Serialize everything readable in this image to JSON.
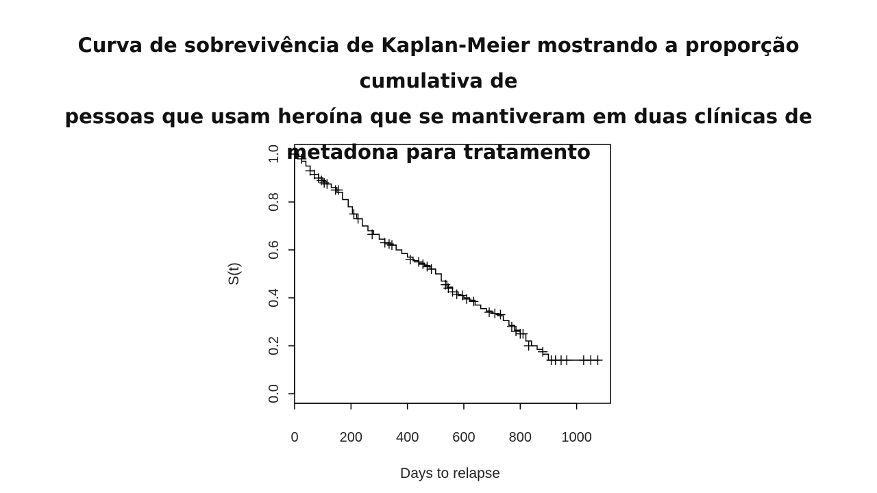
{
  "title_lines": [
    "Curva de sobrevivência de Kaplan-Meier mostrando a proporção cumulativa de",
    "pessoas que usam heroína que se mantiveram em duas clínicas de",
    "metadona para tratamento"
  ],
  "chart_data": {
    "type": "line",
    "xlabel": "Days to relapse",
    "ylabel": "S(t)",
    "xlim": [
      0,
      1120
    ],
    "ylim": [
      -0.04,
      1.04
    ],
    "x_ticks": [
      0,
      200,
      400,
      600,
      800,
      1000
    ],
    "x_tick_labels": [
      "0",
      "200",
      "400",
      "600",
      "800",
      "1000"
    ],
    "y_ticks": [
      0.0,
      0.2,
      0.4,
      0.6,
      0.8,
      1.0
    ],
    "y_tick_labels": [
      "0.0",
      "0.2",
      "0.4",
      "0.6",
      "0.8",
      "1.0"
    ],
    "grid": false,
    "series": [
      {
        "style": "step",
        "color": "#000000",
        "x": [
          0,
          15,
          25,
          40,
          55,
          70,
          85,
          100,
          115,
          130,
          150,
          170,
          190,
          205,
          220,
          240,
          260,
          280,
          300,
          320,
          340,
          360,
          380,
          400,
          420,
          440,
          460,
          480,
          500,
          520,
          540,
          560,
          580,
          600,
          620,
          640,
          660,
          680,
          700,
          720,
          740,
          760,
          780,
          800,
          820,
          840,
          860,
          880,
          900,
          910,
          1080
        ],
        "y": [
          1.0,
          0.99,
          0.97,
          0.95,
          0.93,
          0.915,
          0.9,
          0.885,
          0.875,
          0.86,
          0.84,
          0.81,
          0.78,
          0.75,
          0.73,
          0.7,
          0.68,
          0.665,
          0.645,
          0.63,
          0.62,
          0.6,
          0.585,
          0.57,
          0.555,
          0.545,
          0.535,
          0.52,
          0.5,
          0.47,
          0.445,
          0.425,
          0.41,
          0.4,
          0.39,
          0.37,
          0.355,
          0.345,
          0.335,
          0.325,
          0.305,
          0.285,
          0.265,
          0.25,
          0.22,
          0.2,
          0.185,
          0.165,
          0.14,
          0.14,
          0.14
        ]
      }
    ],
    "censored": {
      "x": [
        25,
        55,
        70,
        85,
        95,
        105,
        115,
        145,
        155,
        210,
        225,
        275,
        320,
        335,
        345,
        410,
        440,
        455,
        470,
        485,
        535,
        545,
        560,
        575,
        595,
        610,
        635,
        690,
        710,
        730,
        770,
        785,
        800,
        810,
        830,
        880,
        910,
        925,
        945,
        965,
        1025,
        1050,
        1075
      ],
      "y": [
        0.98,
        0.93,
        0.915,
        0.9,
        0.89,
        0.88,
        0.875,
        0.85,
        0.85,
        0.75,
        0.73,
        0.665,
        0.63,
        0.625,
        0.62,
        0.56,
        0.55,
        0.54,
        0.53,
        0.52,
        0.455,
        0.44,
        0.425,
        0.415,
        0.41,
        0.395,
        0.385,
        0.34,
        0.335,
        0.33,
        0.28,
        0.26,
        0.25,
        0.25,
        0.2,
        0.175,
        0.14,
        0.14,
        0.14,
        0.14,
        0.14,
        0.14,
        0.14
      ]
    }
  }
}
